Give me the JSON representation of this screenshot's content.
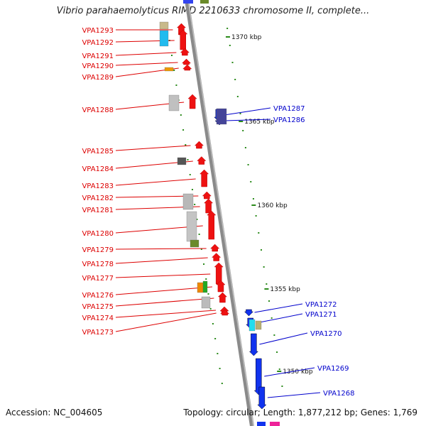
{
  "title": "Vibrio parahaemolyticus RIMD 2210633 chromosome II, complete...",
  "accession": "Accession: NC_004605",
  "topology": "Topology: circular; Length: 1,877,212 bp; Genes: 1,769",
  "colors": {
    "axis": "#7a7a7a",
    "forward_gene": "#ee1111",
    "reverse_gene": "#1133ee",
    "forward_label": "#dd0000",
    "reverse_label": "#0000cc",
    "tick": "#2a8a1a"
  },
  "scale_labels": [
    {
      "text": "1370 kbp",
      "kbp": 1370
    },
    {
      "text": "1365 kbp",
      "kbp": 1365
    },
    {
      "text": "1360 kbp",
      "kbp": 1360
    },
    {
      "text": "1355 kbp",
      "kbp": 1355
    },
    {
      "text": "1350 kbp",
      "kbp": 1350
    }
  ],
  "forward_genes": [
    "VPA1293",
    "VPA1292",
    "VPA1291",
    "VPA1290",
    "VPA1289",
    "VPA1288",
    "VPA1285",
    "VPA1284",
    "VPA1283",
    "VPA1282",
    "VPA1281",
    "VPA1280",
    "VPA1279",
    "VPA1278",
    "VPA1277",
    "VPA1276",
    "VPA1275",
    "VPA1274",
    "VPA1273"
  ],
  "reverse_genes": [
    "VPA1287",
    "VPA1286",
    "VPA1272",
    "VPA1271",
    "VPA1270",
    "VPA1269",
    "VPA1268"
  ]
}
